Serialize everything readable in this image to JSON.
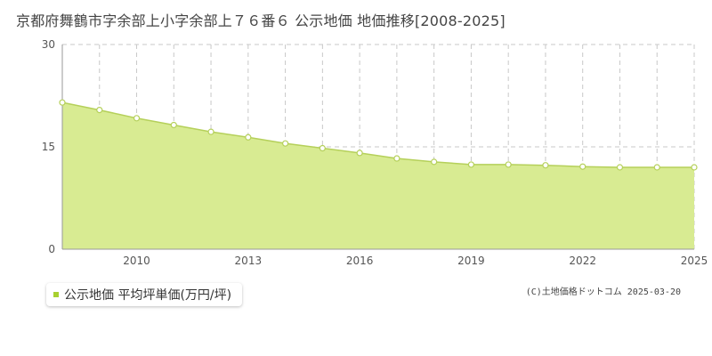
{
  "title": "京都府舞鶴市字余部上小字余部上７６番６ 公示地価 地価推移[2008-2025]",
  "legend_label": "公示地価 平均坪単価(万円/坪)",
  "copyright": "(C)土地価格ドットコム 2025-03-20",
  "colors": {
    "fill": "#d8eb92",
    "line": "#b5d05a",
    "marker_fill": "#ffffff",
    "grid": "#c8c8c8",
    "axis": "#999999",
    "legend_swatch": "#a8d030"
  },
  "chart_data": {
    "type": "area",
    "title": "京都府舞鶴市字余部上小字余部上７６番６ 公示地価 地価推移[2008-2025]",
    "x": [
      2008,
      2009,
      2010,
      2011,
      2012,
      2013,
      2014,
      2015,
      2016,
      2017,
      2018,
      2019,
      2020,
      2021,
      2022,
      2023,
      2024,
      2025
    ],
    "series": [
      {
        "name": "公示地価 平均坪単価(万円/坪)",
        "values": [
          21.5,
          20.4,
          19.2,
          18.2,
          17.2,
          16.4,
          15.5,
          14.8,
          14.1,
          13.3,
          12.8,
          12.4,
          12.4,
          12.3,
          12.1,
          12.0,
          12.0,
          12.0
        ]
      }
    ],
    "xlim": [
      2008,
      2025
    ],
    "ylim": [
      0,
      30
    ],
    "y_ticks": [
      0,
      15,
      30
    ],
    "x_tick_labels": [
      2010,
      2013,
      2016,
      2019,
      2022,
      2025
    ],
    "grid": true,
    "legend_position": "bottom-left"
  }
}
